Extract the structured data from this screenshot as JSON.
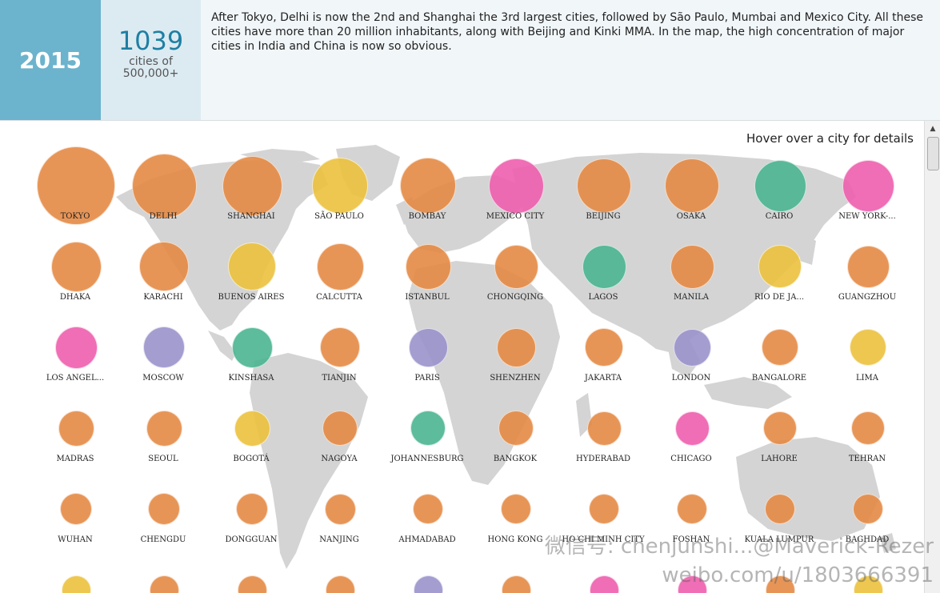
{
  "header": {
    "year": "2015",
    "count": "1039",
    "count_label_1": "cities of",
    "count_label_2": "500,000+",
    "description": "After Tokyo, Delhi is now the 2nd and Shanghai the 3rd largest cities, followed by São Paulo, Mumbai and Mexico City. All these cities have more than 20 million inhabitants, along with Beijing and Kinki MMA. In the map, the high concentration of major cities in India and China is now so obvious."
  },
  "hint": "Hover over a city for details",
  "colors": {
    "asia": "#e58a45",
    "latin_america": "#ecc23e",
    "north_america": "#ee5fae",
    "africa": "#4bb591",
    "europe": "#9b93cc",
    "header_blue": "#6cb3cd",
    "map_land": "#d4d4d4"
  },
  "cities": [
    {
      "name": "TOKYO",
      "region": "asia",
      "size": 1.0
    },
    {
      "name": "DELHI",
      "region": "asia",
      "size": 0.82
    },
    {
      "name": "SHANGHAI",
      "region": "asia",
      "size": 0.76
    },
    {
      "name": "SÃO PAULO",
      "region": "latin_america",
      "size": 0.71
    },
    {
      "name": "BOMBAY",
      "region": "asia",
      "size": 0.71
    },
    {
      "name": "MEXICO CITY",
      "region": "north_america",
      "size": 0.7
    },
    {
      "name": "BEIJING",
      "region": "asia",
      "size": 0.69
    },
    {
      "name": "OSAKA",
      "region": "asia",
      "size": 0.69
    },
    {
      "name": "CAIRO",
      "region": "africa",
      "size": 0.66
    },
    {
      "name": "NEW YORK-...",
      "region": "north_america",
      "size": 0.66
    },
    {
      "name": "DHAKA",
      "region": "asia",
      "size": 0.64
    },
    {
      "name": "KARACHI",
      "region": "asia",
      "size": 0.63
    },
    {
      "name": "BUENOS AIRES",
      "region": "latin_america",
      "size": 0.6
    },
    {
      "name": "CALCUTTA",
      "region": "asia",
      "size": 0.59
    },
    {
      "name": "ISTANBUL",
      "region": "asia",
      "size": 0.57
    },
    {
      "name": "CHONGQING",
      "region": "asia",
      "size": 0.55
    },
    {
      "name": "LAGOS",
      "region": "africa",
      "size": 0.55
    },
    {
      "name": "MANILA",
      "region": "asia",
      "size": 0.55
    },
    {
      "name": "RIO DE JA...",
      "region": "latin_america",
      "size": 0.54
    },
    {
      "name": "GUANGZHOU",
      "region": "asia",
      "size": 0.53
    },
    {
      "name": "LOS ANGEL...",
      "region": "north_america",
      "size": 0.53
    },
    {
      "name": "MOSCOW",
      "region": "europe",
      "size": 0.52
    },
    {
      "name": "KINSHASA",
      "region": "africa",
      "size": 0.51
    },
    {
      "name": "TIANJIN",
      "region": "asia",
      "size": 0.5
    },
    {
      "name": "PARIS",
      "region": "europe",
      "size": 0.49
    },
    {
      "name": "SHENZHEN",
      "region": "asia",
      "size": 0.49
    },
    {
      "name": "JAKARTA",
      "region": "asia",
      "size": 0.48
    },
    {
      "name": "LONDON",
      "region": "europe",
      "size": 0.47
    },
    {
      "name": "BANGALORE",
      "region": "asia",
      "size": 0.46
    },
    {
      "name": "LIMA",
      "region": "latin_america",
      "size": 0.46
    },
    {
      "name": "MADRAS",
      "region": "asia",
      "size": 0.45
    },
    {
      "name": "SEOUL",
      "region": "asia",
      "size": 0.45
    },
    {
      "name": "BOGOTÁ",
      "region": "latin_america",
      "size": 0.45
    },
    {
      "name": "NAGOYA",
      "region": "asia",
      "size": 0.44
    },
    {
      "name": "JOHANNESBURG",
      "region": "africa",
      "size": 0.44
    },
    {
      "name": "BANGKOK",
      "region": "asia",
      "size": 0.44
    },
    {
      "name": "HYDERABAD",
      "region": "asia",
      "size": 0.43
    },
    {
      "name": "CHICAGO",
      "region": "north_america",
      "size": 0.43
    },
    {
      "name": "LAHORE",
      "region": "asia",
      "size": 0.42
    },
    {
      "name": "TEHRAN",
      "region": "asia",
      "size": 0.42
    },
    {
      "name": "WUHAN",
      "region": "asia",
      "size": 0.4
    },
    {
      "name": "CHENGDU",
      "region": "asia",
      "size": 0.4
    },
    {
      "name": "DONGGUAN",
      "region": "asia",
      "size": 0.4
    },
    {
      "name": "NANJING",
      "region": "asia",
      "size": 0.39
    },
    {
      "name": "AHMADABAD",
      "region": "asia",
      "size": 0.38
    },
    {
      "name": "HONG KONG",
      "region": "asia",
      "size": 0.38
    },
    {
      "name": "HO CHI MINH CITY",
      "region": "asia",
      "size": 0.38
    },
    {
      "name": "FOSHAN",
      "region": "asia",
      "size": 0.37
    },
    {
      "name": "KUALA LUMPUR",
      "region": "asia",
      "size": 0.37
    },
    {
      "name": "BAGHDAD",
      "region": "asia",
      "size": 0.37
    },
    {
      "name": "",
      "region": "latin_america",
      "size": 0.36
    },
    {
      "name": "",
      "region": "asia",
      "size": 0.36
    },
    {
      "name": "",
      "region": "asia",
      "size": 0.36
    },
    {
      "name": "",
      "region": "asia",
      "size": 0.36
    },
    {
      "name": "",
      "region": "europe",
      "size": 0.36
    },
    {
      "name": "",
      "region": "asia",
      "size": 0.36
    },
    {
      "name": "",
      "region": "north_america",
      "size": 0.36
    },
    {
      "name": "",
      "region": "north_america",
      "size": 0.36
    },
    {
      "name": "",
      "region": "asia",
      "size": 0.36
    },
    {
      "name": "",
      "region": "latin_america",
      "size": 0.36
    }
  ],
  "watermark": {
    "line1": "微信号: chenjunshi...@Maverick-Rezer",
    "line2": "weibo.com/u/1803666391"
  }
}
